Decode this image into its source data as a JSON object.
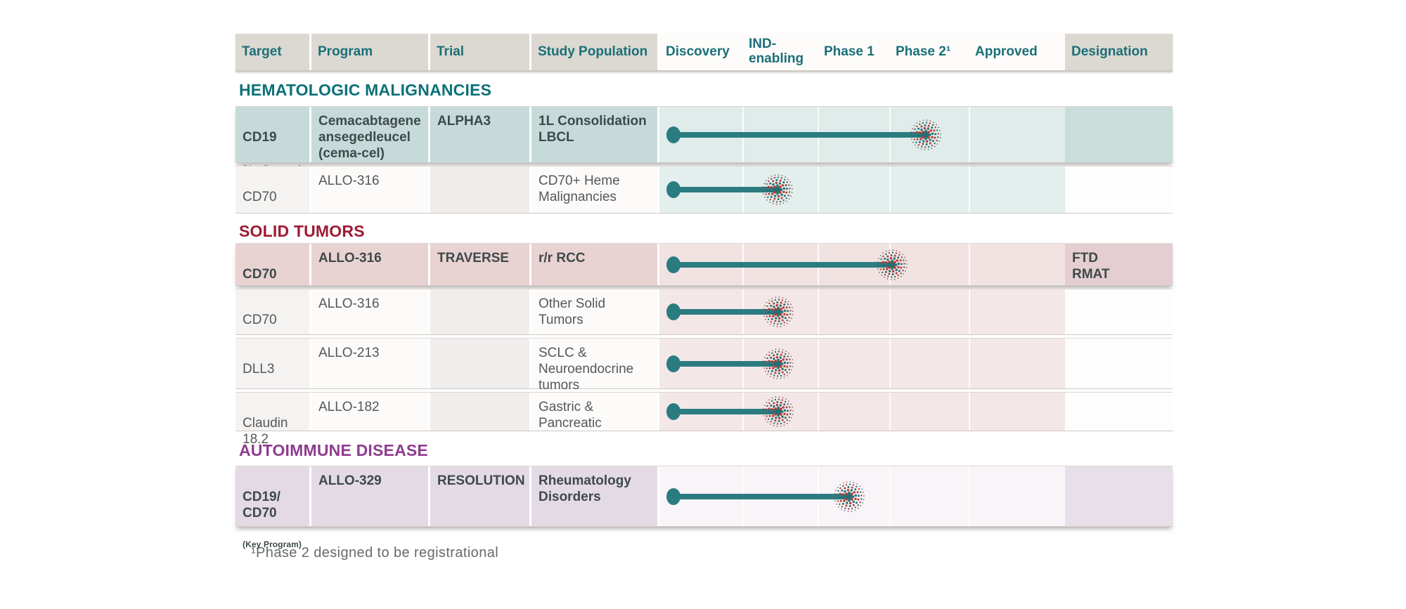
{
  "header": {
    "columns": [
      "Target",
      "Program",
      "Trial",
      "Study Population",
      "Discovery",
      "IND-\nenabling",
      "Phase 1",
      "Phase 2¹",
      "Approved",
      "Designation"
    ]
  },
  "sections": [
    {
      "title": "HEMATOLOGIC MALIGNANCIES",
      "rows": [
        {
          "target": "CD19",
          "note": "(Key Program)",
          "program": "Cemacabtagene ansegedleucel (cema-cel)",
          "trial": "ALPHA3",
          "study": "1L Consolidation LBCL",
          "designation": "",
          "stage": "Phase 2",
          "progress_pct": 65.7
        },
        {
          "target": "CD70",
          "note": "",
          "program": "ALLO-316",
          "trial": "",
          "study": "CD70+ Heme Malignancies",
          "designation": "",
          "stage": "IND-enabling",
          "progress_pct": 29.1
        }
      ]
    },
    {
      "title": "SOLID TUMORS",
      "rows": [
        {
          "target": "CD70",
          "note": "(Key Program)",
          "program": "ALLO-316",
          "trial": "TRAVERSE",
          "study": "r/r RCC",
          "designation": "FTD\nRMAT",
          "stage": "Phase 1 / Phase 2",
          "progress_pct": 57.4
        },
        {
          "target": "CD70",
          "note": "",
          "program": "ALLO-316",
          "trial": "",
          "study": "Other Solid Tumors",
          "designation": "",
          "stage": "IND-enabling",
          "progress_pct": 29.3
        },
        {
          "target": "DLL3",
          "note": "",
          "program": "ALLO-213",
          "trial": "",
          "study": "SCLC & Neuroendocrine tumors",
          "designation": "",
          "stage": "IND-enabling",
          "progress_pct": 29.3
        },
        {
          "target": "Claudin 18.2",
          "note": "",
          "program": "ALLO-182",
          "trial": "",
          "study": "Gastric & Pancreatic",
          "designation": "",
          "stage": "IND-enabling",
          "progress_pct": 29.3
        }
      ]
    },
    {
      "title": "AUTOIMMUNE DISEASE",
      "rows": [
        {
          "target": "CD19/\nCD70",
          "note": "(Key Program)",
          "program": "ALLO-329",
          "trial": "RESOLUTION",
          "study": "Rheumatology Disorders",
          "designation": "",
          "stage": "Phase 1",
          "progress_pct": 46.8
        }
      ]
    }
  ],
  "footnote": {
    "text": "¹Phase 2 designed to be registrational"
  },
  "colors": {
    "accent_teal": "#2a7c81",
    "header_text": "#1b6f78",
    "header_gray_bg": "#dbd9d1",
    "hema_title": "#0b7177",
    "solid_title": "#9c1c33",
    "autoimmune_title": "#8e3c8e",
    "starburst_red": "#b13a35",
    "hema_key_bg": "#c6dbd9",
    "solid_key_bg": "#e9d2d2",
    "autoimmune_key_bg": "#e4dae6"
  },
  "chart_data": {
    "type": "table",
    "phases": [
      "Discovery",
      "IND-enabling",
      "Phase 1",
      "Phase 2",
      "Approved"
    ],
    "programs": [
      {
        "section": "HEMATOLOGIC MALIGNANCIES",
        "target": "CD19",
        "program": "Cemacabtagene ansegedleucel (cema-cel)",
        "trial": "ALPHA3",
        "study_population": "1L Consolidation LBCL",
        "key_program": true,
        "stage_reached": "Phase 2",
        "designation": ""
      },
      {
        "section": "HEMATOLOGIC MALIGNANCIES",
        "target": "CD70",
        "program": "ALLO-316",
        "trial": "",
        "study_population": "CD70+ Heme Malignancies",
        "key_program": false,
        "stage_reached": "IND-enabling",
        "designation": ""
      },
      {
        "section": "SOLID TUMORS",
        "target": "CD70",
        "program": "ALLO-316",
        "trial": "TRAVERSE",
        "study_population": "r/r RCC",
        "key_program": true,
        "stage_reached": "Phase 1 / Phase 2",
        "designation": "FTD RMAT"
      },
      {
        "section": "SOLID TUMORS",
        "target": "CD70",
        "program": "ALLO-316",
        "trial": "",
        "study_population": "Other Solid Tumors",
        "key_program": false,
        "stage_reached": "IND-enabling",
        "designation": ""
      },
      {
        "section": "SOLID TUMORS",
        "target": "DLL3",
        "program": "ALLO-213",
        "trial": "",
        "study_population": "SCLC & Neuroendocrine tumors",
        "key_program": false,
        "stage_reached": "IND-enabling",
        "designation": ""
      },
      {
        "section": "SOLID TUMORS",
        "target": "Claudin 18.2",
        "program": "ALLO-182",
        "trial": "",
        "study_population": "Gastric & Pancreatic",
        "key_program": false,
        "stage_reached": "IND-enabling",
        "designation": ""
      },
      {
        "section": "AUTOIMMUNE DISEASE",
        "target": "CD19/CD70",
        "program": "ALLO-329",
        "trial": "RESOLUTION",
        "study_population": "Rheumatology Disorders",
        "key_program": true,
        "stage_reached": "Phase 1",
        "designation": ""
      }
    ],
    "footnote": "¹Phase 2 designed to be registrational"
  }
}
